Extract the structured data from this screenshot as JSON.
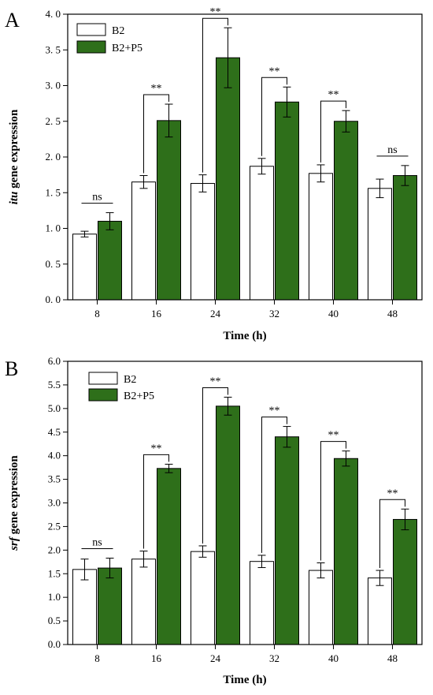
{
  "chart_data": [
    {
      "type": "bar",
      "panel_label": "A",
      "categories": [
        "8",
        "16",
        "24",
        "32",
        "40",
        "48"
      ],
      "xlabel": "Time (h)",
      "ylabel": {
        "italic": "itu",
        "rest": " gene expression"
      },
      "ylim": [
        0,
        4.0
      ],
      "yticks": [
        "0. 0",
        "0. 5",
        "1. 0",
        "1. 5",
        "2. 0",
        "2. 5",
        "3. 0",
        "3. 5",
        "4. 0"
      ],
      "ytick_values": [
        0,
        0.5,
        1.0,
        1.5,
        2.0,
        2.5,
        3.0,
        3.5,
        4.0
      ],
      "legend_position": "top-left",
      "series": [
        {
          "name": "B2",
          "color": "#ffffff",
          "values": [
            0.92,
            1.65,
            1.63,
            1.87,
            1.77,
            1.56
          ],
          "errors": [
            0.04,
            0.09,
            0.12,
            0.11,
            0.12,
            0.13
          ]
        },
        {
          "name": "B2+P5",
          "color": "#2e6f1a",
          "values": [
            1.1,
            2.51,
            3.39,
            2.77,
            2.5,
            1.74
          ],
          "errors": [
            0.12,
            0.23,
            0.42,
            0.21,
            0.15,
            0.14
          ]
        }
      ],
      "significance": [
        "ns",
        "**",
        "**",
        "**",
        "**",
        "ns"
      ]
    },
    {
      "type": "bar",
      "panel_label": "B",
      "categories": [
        "8",
        "16",
        "24",
        "32",
        "40",
        "48"
      ],
      "xlabel": "Time (h)",
      "ylabel": {
        "italic": "srf",
        "rest": " gene expression"
      },
      "ylim": [
        0,
        6.0
      ],
      "yticks": [
        "0.0",
        "0.5",
        "1.0",
        "1.5",
        "2.0",
        "2.5",
        "3.0",
        "3.5",
        "4.0",
        "4.5",
        "5.0",
        "5.5",
        "6.0"
      ],
      "ytick_values": [
        0,
        0.5,
        1.0,
        1.5,
        2.0,
        2.5,
        3.0,
        3.5,
        4.0,
        4.5,
        5.0,
        5.5,
        6.0
      ],
      "legend_position": "top-left",
      "series": [
        {
          "name": "B2",
          "color": "#ffffff",
          "values": [
            1.59,
            1.81,
            1.97,
            1.76,
            1.57,
            1.41
          ],
          "errors": [
            0.22,
            0.17,
            0.12,
            0.13,
            0.16,
            0.16
          ]
        },
        {
          "name": "B2+P5",
          "color": "#2e6f1a",
          "values": [
            1.62,
            3.73,
            5.05,
            4.4,
            3.94,
            2.65
          ],
          "errors": [
            0.21,
            0.09,
            0.19,
            0.22,
            0.16,
            0.22
          ]
        }
      ],
      "significance": [
        "ns",
        "**",
        "**",
        "**",
        "**",
        "**"
      ]
    }
  ]
}
